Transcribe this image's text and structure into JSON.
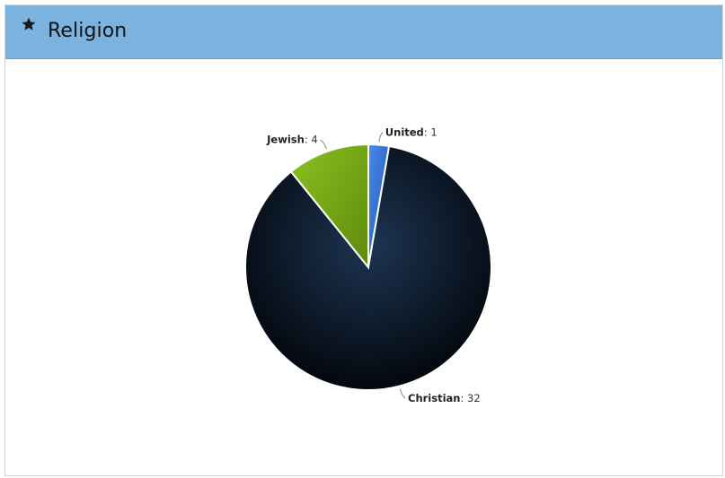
{
  "panel": {
    "title": "Religion",
    "icon": "star-icon",
    "header_color": "#7cb3de"
  },
  "chart_data": {
    "type": "pie",
    "title": "",
    "slices": [
      {
        "name": "United",
        "value": 1,
        "color": "#2f6fd0"
      },
      {
        "name": "Christian",
        "value": 32,
        "color": "#0c1a2e"
      },
      {
        "name": "Jewish",
        "value": 4,
        "color": "#7fae1b"
      }
    ]
  }
}
